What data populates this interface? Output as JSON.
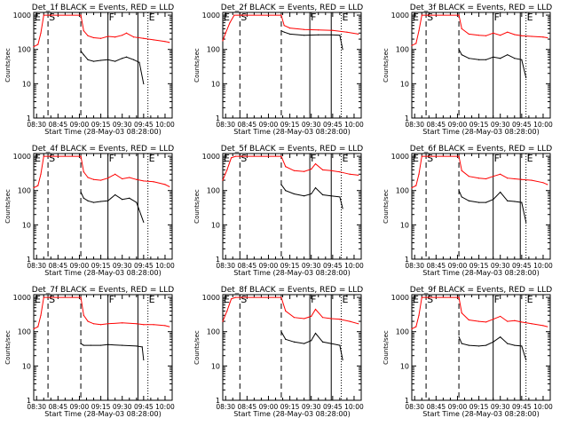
{
  "figure": {
    "ylabel": "Counts/sec",
    "xlabel": "Start Time (28-May-03 08:28:00)",
    "x_ticks": [
      "08:30",
      "08:45",
      "09:00",
      "09:15",
      "09:30",
      "09:45",
      "10:00"
    ],
    "y_ticks": [
      "1",
      "10",
      "100",
      "1000"
    ],
    "colors": {
      "events": "#000000",
      "lld": "#ff0000",
      "axes": "#000000"
    }
  },
  "chart_data": [
    {
      "type": "line",
      "title": "Det_1f BLACK = Events, RED = LLD",
      "ylog": true,
      "ylim": [
        1,
        1200
      ],
      "xlim": [
        "08:28",
        "10:05"
      ],
      "markers": [
        {
          "label": "E",
          "time": "08:28"
        },
        {
          "label": "S",
          "time": "08:38",
          "style": "dashed"
        },
        {
          "label": "",
          "time": "09:01",
          "style": "dashed"
        },
        {
          "label": "F",
          "time": "09:20",
          "style": "solid"
        },
        {
          "label": "",
          "time": "09:41",
          "style": "solid"
        },
        {
          "label": "E",
          "time": "09:48",
          "style": "dotted"
        }
      ],
      "series": [
        {
          "name": "LLD",
          "color": "#ff0000",
          "x": [
            "08:28",
            "08:31",
            "08:33",
            "08:35",
            "09:01",
            "09:03",
            "09:06",
            "09:10",
            "09:15",
            "09:20",
            "09:25",
            "09:30",
            "09:33",
            "09:38",
            "09:45",
            "09:52",
            "10:00",
            "10:03"
          ],
          "y": [
            120,
            140,
            300,
            1000,
            1000,
            350,
            250,
            220,
            210,
            240,
            230,
            260,
            300,
            230,
            210,
            190,
            170,
            160
          ]
        },
        {
          "name": "Events",
          "color": "#000000",
          "x": [
            "09:01",
            "09:03",
            "09:06",
            "09:10",
            "09:15",
            "09:20",
            "09:25",
            "09:30",
            "09:33",
            "09:38",
            "09:42",
            "09:45"
          ],
          "y": [
            90,
            70,
            50,
            45,
            48,
            50,
            45,
            55,
            60,
            50,
            42,
            10
          ]
        }
      ]
    },
    {
      "type": "line",
      "title": "Det_2f BLACK = Events, RED = LLD",
      "ylog": true,
      "ylim": [
        1,
        1200
      ],
      "xlim": [
        "08:28",
        "10:05"
      ],
      "markers": [
        {
          "label": "E",
          "time": "08:28"
        },
        {
          "label": "S",
          "time": "08:40",
          "style": "dashed"
        },
        {
          "label": "",
          "time": "09:09",
          "style": "dashed"
        },
        {
          "label": "F",
          "time": "09:29",
          "style": "solid"
        },
        {
          "label": "",
          "time": "09:44",
          "style": "solid"
        },
        {
          "label": "E",
          "time": "09:51",
          "style": "dotted"
        }
      ],
      "series": [
        {
          "name": "LLD",
          "color": "#ff0000",
          "x": [
            "08:28",
            "08:30",
            "08:33",
            "08:36",
            "08:38",
            "08:40",
            "09:09",
            "09:11",
            "09:15",
            "09:25",
            "09:35",
            "09:45",
            "09:55",
            "10:03"
          ],
          "y": [
            180,
            300,
            600,
            1000,
            1000,
            1000,
            1000,
            500,
            420,
            380,
            370,
            360,
            320,
            280
          ]
        },
        {
          "name": "Events",
          "color": "#000000",
          "x": [
            "09:09",
            "09:11",
            "09:15",
            "09:25",
            "09:35",
            "09:44",
            "09:50",
            "09:52"
          ],
          "y": [
            350,
            320,
            280,
            260,
            265,
            265,
            260,
            100
          ]
        }
      ]
    },
    {
      "type": "line",
      "title": "Det_3f BLACK = Events, RED = LLD",
      "ylog": true,
      "ylim": [
        1,
        1200
      ],
      "xlim": [
        "08:28",
        "10:05"
      ],
      "markers": [
        {
          "label": "E",
          "time": "08:28"
        },
        {
          "label": "S",
          "time": "08:38",
          "style": "dashed"
        },
        {
          "label": "",
          "time": "09:01",
          "style": "dashed"
        },
        {
          "label": "F",
          "time": "09:25",
          "style": "solid"
        },
        {
          "label": "",
          "time": "09:44",
          "style": "solid"
        },
        {
          "label": "E",
          "time": "09:48",
          "style": "dotted"
        }
      ],
      "series": [
        {
          "name": "LLD",
          "color": "#ff0000",
          "x": [
            "08:28",
            "08:31",
            "08:33",
            "08:35",
            "09:01",
            "09:03",
            "09:08",
            "09:15",
            "09:20",
            "09:25",
            "09:30",
            "09:35",
            "09:40",
            "09:45",
            "09:52",
            "10:00",
            "10:03"
          ],
          "y": [
            130,
            150,
            350,
            1000,
            1000,
            400,
            280,
            260,
            250,
            300,
            260,
            320,
            270,
            250,
            240,
            230,
            220
          ]
        },
        {
          "name": "Events",
          "color": "#000000",
          "x": [
            "09:01",
            "09:03",
            "09:08",
            "09:15",
            "09:20",
            "09:25",
            "09:30",
            "09:35",
            "09:40",
            "09:45",
            "09:48"
          ],
          "y": [
            100,
            70,
            55,
            50,
            50,
            60,
            55,
            70,
            55,
            50,
            15
          ]
        }
      ]
    },
    {
      "type": "line",
      "title": "Det_4f BLACK = Events, RED = LLD",
      "ylog": true,
      "ylim": [
        1,
        1200
      ],
      "xlim": [
        "08:28",
        "10:05"
      ],
      "markers": [
        {
          "label": "E",
          "time": "08:28"
        },
        {
          "label": "S",
          "time": "08:38",
          "style": "dashed"
        },
        {
          "label": "",
          "time": "09:01",
          "style": "dashed"
        },
        {
          "label": "F",
          "time": "09:20",
          "style": "solid"
        },
        {
          "label": "",
          "time": "09:41",
          "style": "solid"
        },
        {
          "label": "E",
          "time": "09:48",
          "style": "dotted"
        }
      ],
      "series": [
        {
          "name": "LLD",
          "color": "#ff0000",
          "x": [
            "08:28",
            "08:31",
            "08:33",
            "08:35",
            "09:01",
            "09:03",
            "09:06",
            "09:10",
            "09:15",
            "09:20",
            "09:25",
            "09:30",
            "09:35",
            "09:40",
            "09:45",
            "09:52",
            "10:00",
            "10:03"
          ],
          "y": [
            120,
            140,
            300,
            1000,
            1000,
            350,
            240,
            210,
            200,
            230,
            300,
            220,
            240,
            210,
            190,
            180,
            150,
            130
          ]
        },
        {
          "name": "Events",
          "color": "#000000",
          "x": [
            "09:01",
            "09:03",
            "09:06",
            "09:10",
            "09:15",
            "09:20",
            "09:25",
            "09:30",
            "09:35",
            "09:40",
            "09:45"
          ],
          "y": [
            90,
            60,
            50,
            45,
            48,
            50,
            75,
            55,
            60,
            45,
            12
          ]
        }
      ]
    },
    {
      "type": "line",
      "title": "Det_5f BLACK = Events, RED = LLD",
      "ylog": true,
      "ylim": [
        1,
        1200
      ],
      "xlim": [
        "08:28",
        "10:05"
      ],
      "markers": [
        {
          "label": "E",
          "time": "08:28"
        },
        {
          "label": "S",
          "time": "08:40",
          "style": "dashed"
        },
        {
          "label": "",
          "time": "09:09",
          "style": "dashed"
        },
        {
          "label": "F",
          "time": "09:29",
          "style": "solid"
        },
        {
          "label": "",
          "time": "09:44",
          "style": "solid"
        },
        {
          "label": "E",
          "time": "09:51",
          "style": "dotted"
        }
      ],
      "series": [
        {
          "name": "LLD",
          "color": "#ff0000",
          "x": [
            "08:28",
            "08:31",
            "08:34",
            "08:37",
            "09:09",
            "09:12",
            "09:18",
            "09:25",
            "09:30",
            "09:33",
            "09:38",
            "09:44",
            "09:50",
            "09:57",
            "10:03"
          ],
          "y": [
            200,
            400,
            900,
            1000,
            1000,
            500,
            380,
            360,
            420,
            600,
            400,
            380,
            350,
            300,
            280
          ]
        },
        {
          "name": "Events",
          "color": "#000000",
          "x": [
            "09:09",
            "09:12",
            "09:18",
            "09:25",
            "09:30",
            "09:33",
            "09:38",
            "09:44",
            "09:50",
            "09:52"
          ],
          "y": [
            150,
            100,
            80,
            70,
            80,
            120,
            75,
            70,
            65,
            30
          ]
        }
      ]
    },
    {
      "type": "line",
      "title": "Det_6f BLACK = Events, RED = LLD",
      "ylog": true,
      "ylim": [
        1,
        1200
      ],
      "xlim": [
        "08:28",
        "10:05"
      ],
      "markers": [
        {
          "label": "E",
          "time": "08:28"
        },
        {
          "label": "S",
          "time": "08:38",
          "style": "dashed"
        },
        {
          "label": "",
          "time": "09:01",
          "style": "dashed"
        },
        {
          "label": "F",
          "time": "09:25",
          "style": "solid"
        },
        {
          "label": "",
          "time": "09:44",
          "style": "solid"
        },
        {
          "label": "E",
          "time": "09:48",
          "style": "dotted"
        }
      ],
      "series": [
        {
          "name": "LLD",
          "color": "#ff0000",
          "x": [
            "08:28",
            "08:31",
            "08:33",
            "08:35",
            "09:01",
            "09:03",
            "09:08",
            "09:15",
            "09:20",
            "09:25",
            "09:30",
            "09:35",
            "09:40",
            "09:45",
            "09:52",
            "10:00",
            "10:03"
          ],
          "y": [
            120,
            140,
            300,
            1000,
            1000,
            380,
            260,
            230,
            220,
            260,
            300,
            230,
            220,
            210,
            200,
            170,
            150
          ]
        },
        {
          "name": "Events",
          "color": "#000000",
          "x": [
            "09:01",
            "09:03",
            "09:08",
            "09:15",
            "09:20",
            "09:25",
            "09:30",
            "09:35",
            "09:40",
            "09:45",
            "09:48"
          ],
          "y": [
            100,
            65,
            50,
            45,
            45,
            55,
            90,
            50,
            48,
            45,
            12
          ]
        }
      ]
    },
    {
      "type": "line",
      "title": "Det_7f BLACK = Events, RED = LLD",
      "ylog": true,
      "ylim": [
        1,
        1200
      ],
      "xlim": [
        "08:28",
        "10:05"
      ],
      "markers": [
        {
          "label": "E",
          "time": "08:28"
        },
        {
          "label": "S",
          "time": "08:38",
          "style": "dashed"
        },
        {
          "label": "",
          "time": "09:01",
          "style": "dashed"
        },
        {
          "label": "F",
          "time": "09:20",
          "style": "solid"
        },
        {
          "label": "",
          "time": "09:41",
          "style": "solid"
        },
        {
          "label": "E",
          "time": "09:48",
          "style": "dotted"
        }
      ],
      "series": [
        {
          "name": "LLD",
          "color": "#ff0000",
          "x": [
            "08:28",
            "08:31",
            "08:33",
            "08:35",
            "09:01",
            "09:03",
            "09:06",
            "09:10",
            "09:15",
            "09:20",
            "09:30",
            "09:40",
            "09:45",
            "09:52",
            "10:00",
            "10:03"
          ],
          "y": [
            120,
            140,
            300,
            1000,
            1000,
            300,
            200,
            170,
            160,
            170,
            180,
            170,
            160,
            160,
            150,
            140
          ]
        },
        {
          "name": "Events",
          "color": "#000000",
          "x": [
            "09:01",
            "09:03",
            "09:08",
            "09:15",
            "09:20",
            "09:30",
            "09:40",
            "09:44",
            "09:45"
          ],
          "y": [
            45,
            40,
            40,
            40,
            42,
            40,
            38,
            36,
            15
          ]
        }
      ]
    },
    {
      "type": "line",
      "title": "Det_8f BLACK = Events, RED = LLD",
      "ylog": true,
      "ylim": [
        1,
        1200
      ],
      "xlim": [
        "08:28",
        "10:05"
      ],
      "markers": [
        {
          "label": "E",
          "time": "08:28"
        },
        {
          "label": "S",
          "time": "08:40",
          "style": "dashed"
        },
        {
          "label": "",
          "time": "09:09",
          "style": "dashed"
        },
        {
          "label": "F",
          "time": "09:29",
          "style": "solid"
        },
        {
          "label": "",
          "time": "09:44",
          "style": "solid"
        },
        {
          "label": "E",
          "time": "09:51",
          "style": "dotted"
        }
      ],
      "series": [
        {
          "name": "LLD",
          "color": "#ff0000",
          "x": [
            "08:28",
            "08:31",
            "08:34",
            "08:37",
            "09:09",
            "09:12",
            "09:18",
            "09:25",
            "09:30",
            "09:33",
            "09:38",
            "09:44",
            "09:50",
            "09:57",
            "10:03"
          ],
          "y": [
            200,
            400,
            900,
            1000,
            1000,
            400,
            260,
            240,
            280,
            450,
            260,
            240,
            230,
            200,
            170
          ]
        },
        {
          "name": "Events",
          "color": "#000000",
          "x": [
            "09:09",
            "09:12",
            "09:18",
            "09:25",
            "09:30",
            "09:33",
            "09:38",
            "09:44",
            "09:50",
            "09:52"
          ],
          "y": [
            100,
            60,
            50,
            45,
            55,
            90,
            50,
            45,
            40,
            15
          ]
        }
      ]
    },
    {
      "type": "line",
      "title": "Det_9f BLACK = Events, RED = LLD",
      "ylog": true,
      "ylim": [
        1,
        1200
      ],
      "xlim": [
        "08:28",
        "10:05"
      ],
      "markers": [
        {
          "label": "E",
          "time": "08:28"
        },
        {
          "label": "S",
          "time": "08:38",
          "style": "dashed"
        },
        {
          "label": "",
          "time": "09:01",
          "style": "dashed"
        },
        {
          "label": "F",
          "time": "09:25",
          "style": "solid"
        },
        {
          "label": "",
          "time": "09:44",
          "style": "solid"
        },
        {
          "label": "E",
          "time": "09:48",
          "style": "dotted"
        }
      ],
      "series": [
        {
          "name": "LLD",
          "color": "#ff0000",
          "x": [
            "08:28",
            "08:31",
            "08:33",
            "08:35",
            "09:01",
            "09:03",
            "09:08",
            "09:15",
            "09:20",
            "09:25",
            "09:30",
            "09:35",
            "09:40",
            "09:45",
            "09:52",
            "10:00",
            "10:03"
          ],
          "y": [
            120,
            140,
            300,
            1000,
            1000,
            350,
            220,
            200,
            190,
            230,
            280,
            200,
            210,
            190,
            170,
            150,
            140
          ]
        },
        {
          "name": "Events",
          "color": "#000000",
          "x": [
            "09:01",
            "09:03",
            "09:08",
            "09:15",
            "09:20",
            "09:25",
            "09:30",
            "09:35",
            "09:40",
            "09:45",
            "09:48"
          ],
          "y": [
            70,
            45,
            40,
            38,
            40,
            50,
            70,
            45,
            40,
            38,
            15
          ]
        }
      ]
    }
  ]
}
